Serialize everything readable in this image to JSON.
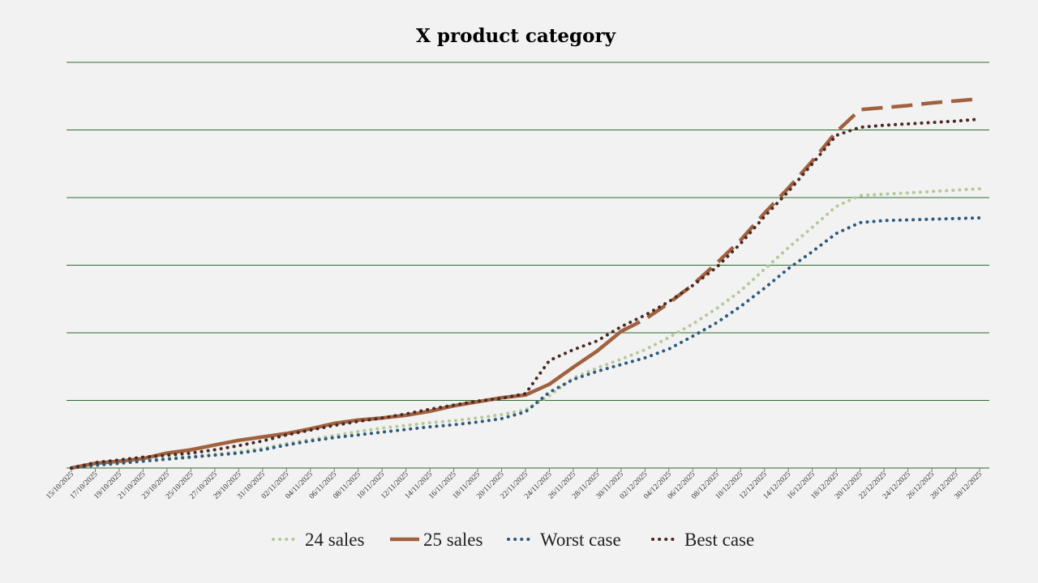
{
  "chart_data": {
    "type": "line",
    "title": "X product category",
    "xlabel": "",
    "ylabel": "",
    "ylim": [
      0,
      6
    ],
    "grid": true,
    "legend_position": "bottom",
    "x_ticks": [
      "15/10/2025",
      "17/10/2025",
      "19/10/2025",
      "21/10/2025",
      "23/10/2025",
      "25/10/2025",
      "27/10/2025",
      "29/10/2025",
      "31/10/2025",
      "02/11/2025",
      "04/11/2025",
      "06/11/2025",
      "08/11/2025",
      "10/11/2025",
      "12/11/2025",
      "14/11/2025",
      "16/11/2025",
      "18/11/2025",
      "20/11/2025",
      "22/11/2025",
      "24/11/2025",
      "26/11/2025",
      "28/11/2025",
      "30/11/2025",
      "02/12/2025",
      "04/12/2025",
      "06/12/2025",
      "08/12/2025",
      "10/12/2025",
      "12/12/2025",
      "14/12/2025",
      "16/12/2025",
      "18/12/2025",
      "20/12/2025",
      "22/12/2025",
      "24/12/2025",
      "26/12/2025",
      "28/12/2025",
      "30/12/2025"
    ],
    "x": [
      "15/10/2025",
      "17/10/2025",
      "19/10/2025",
      "21/10/2025",
      "23/10/2025",
      "25/10/2025",
      "27/10/2025",
      "29/10/2025",
      "31/10/2025",
      "02/11/2025",
      "04/11/2025",
      "06/11/2025",
      "08/11/2025",
      "10/11/2025",
      "12/11/2025",
      "14/11/2025",
      "16/11/2025",
      "18/11/2025",
      "20/11/2025",
      "22/11/2025",
      "24/11/2025",
      "26/11/2025",
      "28/11/2025",
      "30/11/2025",
      "02/12/2025",
      "04/12/2025",
      "06/12/2025",
      "08/12/2025",
      "10/12/2025",
      "12/12/2025",
      "14/12/2025",
      "16/12/2025",
      "18/12/2025",
      "20/12/2025",
      "22/12/2025",
      "24/12/2025",
      "26/12/2025",
      "28/12/2025",
      "30/12/2025"
    ],
    "series": [
      {
        "name": "24 sales",
        "color": "#b5c99a",
        "style": "round-dot",
        "values": [
          0.0,
          0.05,
          0.09,
          0.12,
          0.15,
          0.17,
          0.2,
          0.24,
          0.29,
          0.36,
          0.42,
          0.48,
          0.54,
          0.59,
          0.63,
          0.67,
          0.7,
          0.74,
          0.79,
          0.86,
          1.07,
          1.33,
          1.48,
          1.61,
          1.75,
          1.93,
          2.13,
          2.36,
          2.62,
          2.94,
          3.26,
          3.56,
          3.87,
          4.03,
          4.05,
          4.07,
          4.09,
          4.11,
          4.13
        ]
      },
      {
        "name": "25 sales",
        "color": "#a0613f",
        "style": "solid-then-long-dash",
        "values": [
          0.0,
          0.07,
          0.1,
          0.14,
          0.22,
          0.27,
          0.34,
          0.41,
          0.46,
          0.51,
          0.58,
          0.66,
          0.71,
          0.74,
          0.78,
          0.84,
          0.92,
          0.98,
          1.04,
          1.08,
          1.24,
          1.49,
          1.73,
          2.02,
          2.2,
          2.44,
          2.71,
          3.03,
          3.37,
          3.77,
          4.14,
          4.54,
          4.97,
          5.3,
          5.33,
          5.36,
          5.4,
          5.43,
          5.46
        ]
      },
      {
        "name": "Worst case",
        "color": "#2e5a7e",
        "style": "round-dot",
        "values": [
          0.0,
          0.04,
          0.07,
          0.1,
          0.13,
          0.16,
          0.19,
          0.22,
          0.27,
          0.34,
          0.4,
          0.45,
          0.49,
          0.53,
          0.57,
          0.61,
          0.64,
          0.68,
          0.73,
          0.83,
          1.12,
          1.31,
          1.43,
          1.53,
          1.63,
          1.76,
          1.95,
          2.15,
          2.39,
          2.66,
          2.95,
          3.2,
          3.47,
          3.63,
          3.66,
          3.67,
          3.68,
          3.69,
          3.7
        ]
      },
      {
        "name": "Best case",
        "color": "#4a2a24",
        "style": "round-dot",
        "values": [
          0.0,
          0.08,
          0.12,
          0.16,
          0.19,
          0.22,
          0.27,
          0.33,
          0.4,
          0.49,
          0.56,
          0.63,
          0.69,
          0.74,
          0.8,
          0.87,
          0.93,
          0.99,
          1.03,
          1.1,
          1.59,
          1.75,
          1.88,
          2.09,
          2.26,
          2.46,
          2.7,
          2.97,
          3.32,
          3.72,
          4.09,
          4.5,
          4.92,
          5.04,
          5.07,
          5.09,
          5.11,
          5.13,
          5.16
        ]
      }
    ]
  }
}
